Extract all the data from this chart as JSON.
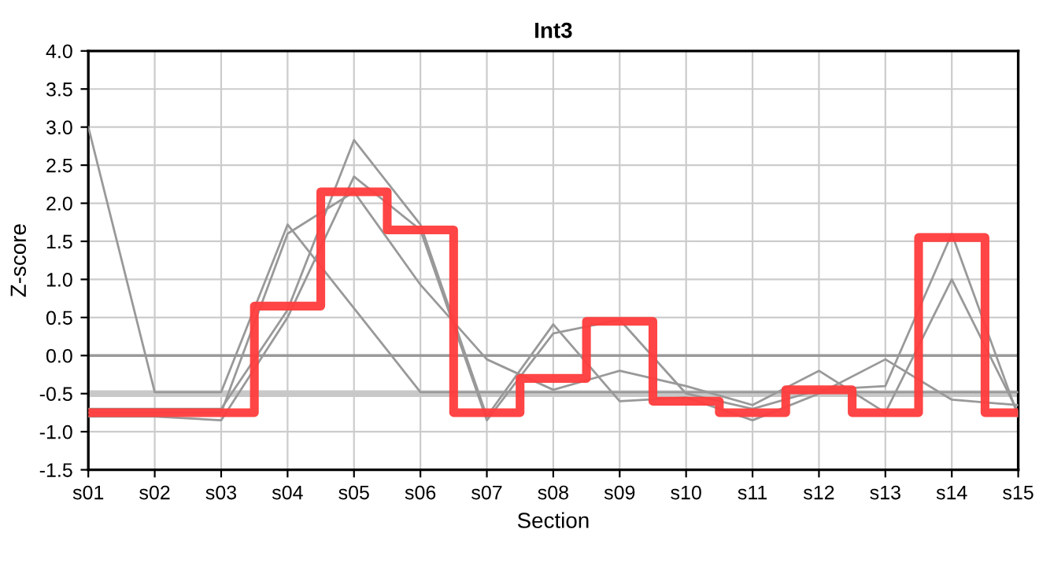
{
  "chart_data": {
    "type": "line",
    "title": "Int3",
    "xlabel": "Section",
    "ylabel": "Z-score",
    "categories": [
      "s01",
      "s02",
      "s03",
      "s04",
      "s05",
      "s06",
      "s07",
      "s08",
      "s09",
      "s10",
      "s11",
      "s12",
      "s13",
      "s14",
      "s15"
    ],
    "series": [
      {
        "color": "#999999",
        "values": [
          3.0,
          -0.48,
          -0.48,
          1.72,
          0.62,
          -0.48,
          -0.48,
          -0.48,
          -0.48,
          -0.48,
          -0.48,
          -0.48,
          -0.48,
          -0.48,
          -0.48
        ]
      },
      {
        "color": "#999999",
        "values": [
          -0.7,
          -0.7,
          -0.7,
          0.6,
          2.83,
          1.72,
          -0.8,
          0.41,
          -0.6,
          -0.55,
          -0.85,
          -0.5,
          -0.05,
          -0.58,
          -0.65
        ]
      },
      {
        "color": "#999999",
        "values": [
          -0.8,
          -0.8,
          -0.85,
          0.5,
          2.35,
          1.65,
          -0.85,
          0.29,
          0.47,
          -0.5,
          -0.7,
          -0.45,
          -0.4,
          1.6,
          -0.8
        ]
      },
      {
        "color": "#999999",
        "values": [
          -0.75,
          -0.75,
          -0.75,
          1.6,
          2.15,
          0.93,
          -0.05,
          -0.45,
          -0.2,
          -0.4,
          -0.65,
          -0.2,
          -0.75,
          1.0,
          -0.75
        ]
      },
      {
        "type": "step",
        "color": "#ff3b3b",
        "values": [
          -0.75,
          -0.75,
          -0.75,
          0.65,
          2.15,
          1.65,
          -0.75,
          -0.3,
          0.45,
          -0.6,
          -0.75,
          -0.45,
          -0.75,
          1.55,
          -0.75
        ]
      }
    ],
    "ref_lines": [
      {
        "axis": "y",
        "value": 0,
        "color": "#999999"
      },
      {
        "axis": "y",
        "value": -0.5,
        "color": "#c8c8c8"
      }
    ],
    "ylim": [
      -1.5,
      4.0
    ],
    "yticks": [
      {
        "value": -1.5,
        "label": "-1.5"
      },
      {
        "value": -1,
        "label": "-1.0"
      },
      {
        "value": -0.5,
        "label": "-0.5"
      },
      {
        "value": 0,
        "label": "0.0"
      },
      {
        "value": 0.5,
        "label": "0.5"
      },
      {
        "value": 1,
        "label": "1.0"
      },
      {
        "value": 1.5,
        "label": "1.5"
      },
      {
        "value": 2,
        "label": "2.0"
      },
      {
        "value": 2.5,
        "label": "2.5"
      },
      {
        "value": 3,
        "label": "3.0"
      },
      {
        "value": 3.5,
        "label": "3.5"
      },
      {
        "value": 4,
        "label": "4.0"
      }
    ],
    "grid": true
  }
}
